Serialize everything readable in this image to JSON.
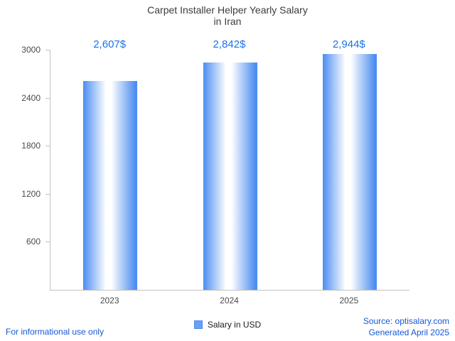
{
  "header": {
    "title": "Carpet Installer Helper Yearly Salary",
    "subtitle": "in Iran"
  },
  "chart_data": {
    "type": "bar",
    "title": "Carpet Installer Helper Yearly Salary in Iran",
    "categories": [
      "2023",
      "2024",
      "2025"
    ],
    "values": [
      2607,
      2842,
      2944
    ],
    "value_labels": [
      "2,607$",
      "2,842$",
      "2,944$"
    ],
    "xlabel": "",
    "ylabel": "",
    "ylim": [
      0,
      3000
    ],
    "yticks": [
      600,
      1200,
      1800,
      2400,
      3000
    ],
    "grid": false,
    "legend_position": "bottom",
    "legend_label": "Salary in USD",
    "colors": {
      "bar_edge": "#4b8df1",
      "bar_mid": "#ffffff",
      "value_label": "#1a73e8",
      "axis": "#c2c2c2",
      "tick_text": "#4a4a4a",
      "legend_swatch": "#6d9ef5",
      "legend_swatch_border": "#4b8df1"
    }
  },
  "footer": {
    "disclaimer": "For informational use only",
    "source": "Source: optisalary.com",
    "generated": "Generated April 2025"
  }
}
